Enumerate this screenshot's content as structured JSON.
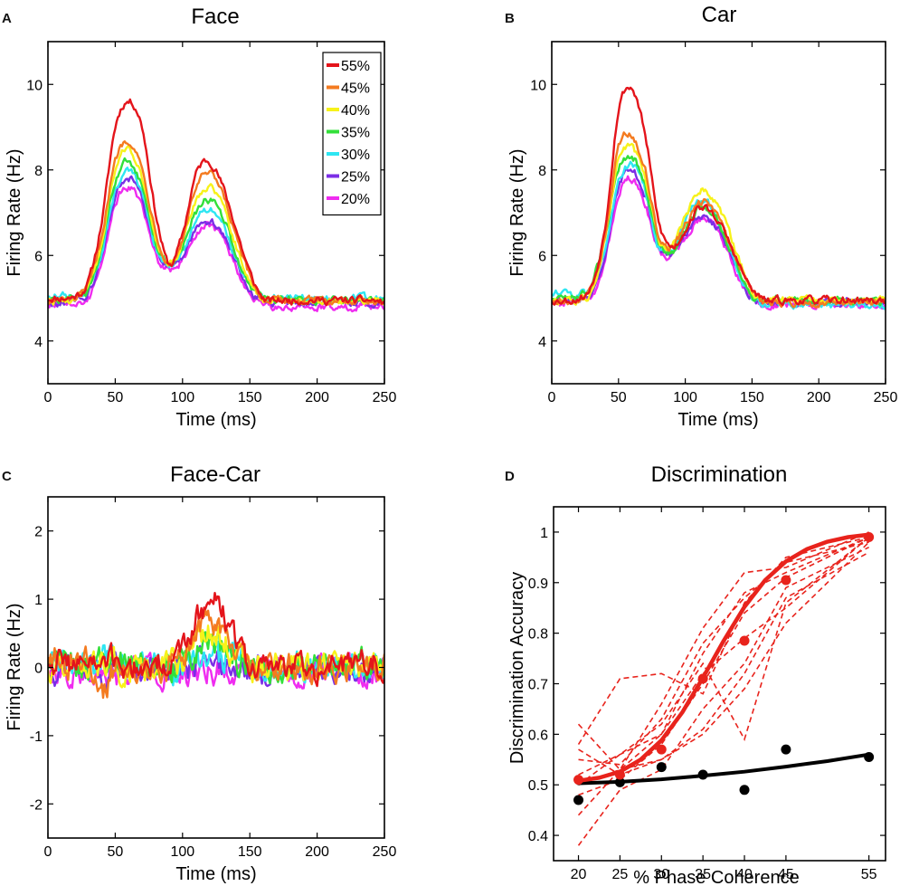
{
  "colors": {
    "55%": "#e4141b",
    "45%": "#f47b20",
    "40%": "#f7f21a",
    "35%": "#33e03a",
    "30%": "#2ee6f2",
    "25%": "#7b2ee6",
    "20%": "#ef2cf0",
    "fit_red": "#e8231c",
    "black": "#000000"
  },
  "chart_data": [
    {
      "panel": "A",
      "type": "line",
      "title": "Face",
      "xlabel": "Time (ms)",
      "ylabel": "Firing Rate (Hz)",
      "xlim": [
        0,
        250
      ],
      "ylim": [
        3,
        11
      ],
      "xticks": [
        0,
        50,
        100,
        150,
        200,
        250
      ],
      "yticks": [
        4,
        6,
        8,
        10
      ],
      "legend": [
        "55%",
        "45%",
        "40%",
        "35%",
        "30%",
        "25%",
        "20%"
      ],
      "series": [
        {
          "name": "55%",
          "values": [
            5.0,
            5.0,
            5.05,
            5.4,
            6.8,
            9.0,
            9.6,
            9.0,
            7.0,
            5.8,
            6.5,
            7.9,
            8.2,
            7.6,
            6.6,
            5.6,
            5.0,
            4.95,
            4.95,
            4.95,
            4.95,
            4.95,
            4.95,
            4.95,
            4.95,
            4.9
          ]
        },
        {
          "name": "45%",
          "values": [
            4.95,
            4.95,
            5.0,
            5.3,
            6.5,
            8.2,
            8.7,
            8.0,
            6.6,
            5.8,
            6.4,
            7.6,
            7.9,
            7.4,
            6.4,
            5.5,
            5.0,
            4.95,
            4.95,
            4.95,
            4.95,
            4.95,
            4.95,
            4.95,
            4.95,
            4.95
          ]
        },
        {
          "name": "40%",
          "values": [
            4.95,
            4.95,
            5.0,
            5.25,
            6.3,
            8.0,
            8.5,
            7.8,
            6.4,
            5.8,
            6.3,
            7.3,
            7.6,
            7.2,
            6.2,
            5.4,
            5.0,
            4.95,
            4.95,
            4.95,
            4.95,
            4.95,
            4.95,
            4.95,
            4.95,
            4.95
          ]
        },
        {
          "name": "35%",
          "values": [
            4.95,
            4.95,
            5.0,
            5.2,
            6.2,
            7.7,
            8.2,
            7.6,
            6.3,
            5.8,
            6.2,
            7.0,
            7.3,
            6.9,
            6.0,
            5.3,
            5.0,
            4.95,
            4.95,
            4.95,
            4.95,
            4.95,
            4.95,
            4.95,
            4.95,
            4.95
          ]
        },
        {
          "name": "30%",
          "values": [
            5.05,
            5.05,
            5.05,
            5.2,
            6.1,
            7.5,
            7.95,
            7.4,
            6.2,
            5.8,
            6.1,
            6.8,
            7.1,
            6.7,
            5.9,
            5.3,
            5.0,
            5.0,
            5.0,
            5.0,
            5.0,
            5.0,
            5.0,
            5.0,
            5.0,
            5.0
          ]
        },
        {
          "name": "25%",
          "values": [
            4.9,
            4.9,
            4.95,
            5.15,
            6.0,
            7.4,
            7.8,
            7.3,
            6.1,
            5.75,
            6.0,
            6.6,
            6.8,
            6.5,
            5.8,
            5.2,
            4.95,
            4.9,
            4.9,
            4.9,
            4.9,
            4.9,
            4.9,
            4.9,
            4.9,
            4.9
          ]
        },
        {
          "name": "20%",
          "values": [
            4.85,
            4.85,
            4.85,
            5.0,
            5.8,
            7.2,
            7.6,
            7.1,
            6.0,
            5.7,
            5.9,
            6.5,
            6.7,
            6.4,
            5.7,
            5.1,
            4.85,
            4.8,
            4.8,
            4.8,
            4.8,
            4.8,
            4.8,
            4.8,
            4.8,
            4.8
          ]
        }
      ]
    },
    {
      "panel": "B",
      "type": "line",
      "title": "Car",
      "xlabel": "Time (ms)",
      "ylabel": "Firing Rate (Hz)",
      "xlim": [
        0,
        250
      ],
      "ylim": [
        3,
        11
      ],
      "xticks": [
        0,
        50,
        100,
        150,
        200,
        250
      ],
      "yticks": [
        4,
        6,
        8,
        10
      ],
      "series": [
        {
          "name": "55%",
          "values": [
            4.95,
            4.95,
            5.0,
            5.3,
            6.7,
            9.4,
            9.9,
            8.8,
            6.8,
            6.2,
            6.6,
            7.1,
            7.0,
            6.5,
            5.8,
            5.2,
            4.95,
            4.95,
            4.95,
            4.95,
            4.95,
            4.95,
            4.95,
            4.95,
            4.95,
            4.95
          ]
        },
        {
          "name": "45%",
          "values": [
            4.9,
            4.9,
            4.95,
            5.25,
            6.5,
            8.5,
            8.8,
            8.0,
            6.5,
            6.2,
            6.7,
            7.2,
            7.1,
            6.5,
            5.8,
            5.2,
            4.9,
            4.9,
            4.9,
            4.9,
            4.9,
            4.9,
            4.9,
            4.9,
            4.9,
            4.9
          ]
        },
        {
          "name": "40%",
          "values": [
            4.9,
            4.9,
            4.95,
            5.2,
            6.4,
            8.2,
            8.5,
            7.8,
            6.4,
            6.3,
            6.9,
            7.5,
            7.4,
            6.8,
            5.9,
            5.2,
            4.95,
            4.95,
            4.95,
            4.95,
            4.95,
            4.95,
            4.95,
            4.95,
            4.95,
            4.95
          ]
        },
        {
          "name": "35%",
          "values": [
            5.0,
            5.0,
            5.05,
            5.35,
            6.5,
            8.0,
            8.3,
            7.6,
            6.3,
            6.1,
            6.6,
            7.1,
            7.0,
            6.4,
            5.7,
            5.1,
            4.95,
            4.95,
            4.95,
            4.95,
            4.95,
            4.95,
            4.95,
            4.95,
            4.95,
            4.95
          ]
        },
        {
          "name": "30%",
          "values": [
            5.1,
            5.1,
            5.1,
            5.25,
            6.2,
            7.7,
            8.1,
            7.5,
            6.2,
            6.1,
            6.8,
            7.3,
            7.1,
            6.4,
            5.6,
            5.0,
            4.85,
            4.85,
            4.85,
            4.85,
            4.85,
            4.85,
            4.85,
            4.85,
            4.85,
            4.85
          ]
        },
        {
          "name": "25%",
          "values": [
            4.95,
            4.95,
            4.95,
            5.15,
            6.0,
            7.6,
            8.0,
            7.4,
            6.2,
            6.0,
            6.5,
            6.9,
            6.8,
            6.3,
            5.6,
            5.0,
            4.9,
            4.9,
            4.9,
            4.9,
            4.9,
            4.9,
            4.9,
            4.9,
            4.9,
            4.9
          ]
        },
        {
          "name": "20%",
          "values": [
            4.9,
            4.9,
            4.9,
            5.05,
            5.9,
            7.4,
            7.8,
            7.2,
            6.1,
            6.0,
            6.4,
            6.8,
            6.7,
            6.2,
            5.5,
            5.0,
            4.85,
            4.85,
            4.85,
            4.85,
            4.85,
            4.85,
            4.85,
            4.85,
            4.85,
            4.85
          ]
        }
      ]
    },
    {
      "panel": "C",
      "type": "line",
      "title": "Face-Car",
      "xlabel": "Time (ms)",
      "ylabel": "Firing Rate (Hz)",
      "xlim": [
        0,
        250
      ],
      "ylim": [
        -2.5,
        2.5
      ],
      "xticks": [
        0,
        50,
        100,
        150,
        200,
        250
      ],
      "yticks": [
        -2,
        -1,
        0,
        1,
        2
      ],
      "series": [
        {
          "name": "55%",
          "values": [
            0.1,
            0.1,
            0.05,
            0.1,
            0.0,
            0.1,
            0.0,
            0.0,
            0.05,
            0.1,
            0.2,
            0.7,
            0.95,
            0.8,
            0.4,
            0.0,
            0.0,
            0.05,
            0.0,
            0.05,
            0.0,
            0.05,
            0.0,
            0.05,
            0.1,
            0.0
          ]
        },
        {
          "name": "45%",
          "values": [
            0.2,
            0.1,
            0.0,
            0.1,
            -0.4,
            0.0,
            0.05,
            0.0,
            0.0,
            0.0,
            0.2,
            0.5,
            0.7,
            0.5,
            0.2,
            0.0,
            0.0,
            0.0,
            0.0,
            0.0,
            0.0,
            0.0,
            0.0,
            0.0,
            0.0,
            0.0
          ]
        },
        {
          "name": "40%",
          "values": [
            0.0,
            0.0,
            0.05,
            0.0,
            0.0,
            0.0,
            -0.05,
            0.0,
            0.0,
            0.05,
            0.1,
            0.35,
            0.5,
            0.4,
            0.15,
            0.0,
            0.0,
            0.0,
            0.0,
            0.0,
            0.0,
            0.0,
            0.0,
            0.0,
            0.0,
            0.0
          ]
        },
        {
          "name": "35%",
          "values": [
            0.0,
            0.05,
            0.0,
            -0.1,
            0.05,
            0.0,
            0.0,
            0.05,
            0.0,
            0.0,
            0.1,
            0.25,
            0.35,
            0.25,
            0.1,
            0.05,
            0.0,
            0.05,
            0.0,
            0.0,
            0.05,
            0.0,
            0.0,
            0.1,
            0.0,
            0.0
          ]
        },
        {
          "name": "30%",
          "values": [
            0.0,
            0.05,
            0.0,
            0.0,
            0.1,
            0.1,
            -0.1,
            0.0,
            0.05,
            -0.1,
            0.05,
            0.1,
            0.15,
            0.1,
            0.25,
            0.05,
            0.0,
            0.0,
            0.0,
            0.0,
            0.0,
            0.0,
            0.05,
            0.0,
            0.0,
            0.0
          ]
        },
        {
          "name": "25%",
          "values": [
            -0.1,
            0.0,
            -0.05,
            0.0,
            -0.1,
            -0.05,
            -0.1,
            0.0,
            0.05,
            0.0,
            0.0,
            0.0,
            0.1,
            0.0,
            -0.05,
            0.0,
            -0.05,
            0.0,
            0.0,
            -0.05,
            0.0,
            0.05,
            -0.05,
            0.0,
            0.0,
            0.0
          ]
        },
        {
          "name": "20%",
          "values": [
            -0.1,
            -0.05,
            -0.1,
            -0.05,
            0.0,
            -0.1,
            -0.05,
            0.0,
            -0.05,
            -0.05,
            -0.1,
            0.0,
            0.0,
            -0.05,
            0.0,
            0.0,
            0.0,
            -0.05,
            -0.1,
            0.0,
            -0.05,
            0.0,
            -0.05,
            0.0,
            -0.1,
            -0.1
          ]
        }
      ]
    },
    {
      "panel": "D",
      "type": "line",
      "title": "Discrimination",
      "xlabel": "% Phase Coherence",
      "ylabel": "Discrimination Accuracy",
      "xlim": [
        17,
        57
      ],
      "ylim": [
        0.35,
        1.05
      ],
      "xticks": [
        20,
        25,
        30,
        35,
        40,
        45,
        55
      ],
      "yticks": [
        0.4,
        0.5,
        0.6,
        0.7,
        0.8,
        0.9,
        1
      ],
      "red_points": {
        "x": [
          20,
          25,
          30,
          35,
          40,
          45,
          55
        ],
        "y": [
          0.51,
          0.52,
          0.57,
          0.71,
          0.785,
          0.905,
          0.99
        ]
      },
      "black_points": {
        "x": [
          20,
          25,
          30,
          35,
          40,
          45,
          55
        ],
        "y": [
          0.47,
          0.505,
          0.535,
          0.52,
          0.49,
          0.57,
          0.555
        ]
      },
      "red_fit": {
        "x": [
          20,
          22.5,
          25,
          27.5,
          30,
          32.5,
          35,
          37.5,
          40,
          42.5,
          45,
          47.5,
          50,
          52.5,
          55
        ],
        "y": [
          0.508,
          0.514,
          0.526,
          0.55,
          0.588,
          0.643,
          0.712,
          0.785,
          0.852,
          0.905,
          0.942,
          0.966,
          0.981,
          0.99,
          0.995
        ]
      },
      "black_fit": {
        "x": [
          20,
          25,
          30,
          35,
          40,
          45,
          50,
          55
        ],
        "y": [
          0.503,
          0.506,
          0.511,
          0.518,
          0.526,
          0.536,
          0.547,
          0.56
        ]
      },
      "dashed_red_series": [
        {
          "values": [
            0.5,
            0.53,
            0.55,
            0.61,
            0.72,
            0.87,
            0.96
          ]
        },
        {
          "values": [
            0.52,
            0.56,
            0.6,
            0.76,
            0.88,
            0.92,
            0.99
          ]
        },
        {
          "values": [
            0.58,
            0.71,
            0.72,
            0.68,
            0.86,
            0.95,
            0.99
          ]
        },
        {
          "values": [
            0.38,
            0.49,
            0.53,
            0.65,
            0.74,
            0.89,
            0.97
          ]
        },
        {
          "values": [
            0.55,
            0.54,
            0.63,
            0.78,
            0.87,
            0.94,
            0.98
          ]
        },
        {
          "values": [
            0.62,
            0.53,
            0.6,
            0.72,
            0.79,
            0.85,
            0.99
          ]
        },
        {
          "values": [
            0.48,
            0.51,
            0.58,
            0.7,
            0.84,
            0.91,
            0.99
          ]
        },
        {
          "values": [
            0.44,
            0.53,
            0.66,
            0.81,
            0.92,
            0.93,
            1.0
          ]
        },
        {
          "values": [
            0.57,
            0.52,
            0.55,
            0.6,
            0.69,
            0.82,
            0.98
          ]
        },
        {
          "values": [
            0.5,
            0.56,
            0.62,
            0.74,
            0.59,
            0.86,
            0.99
          ]
        }
      ]
    }
  ]
}
